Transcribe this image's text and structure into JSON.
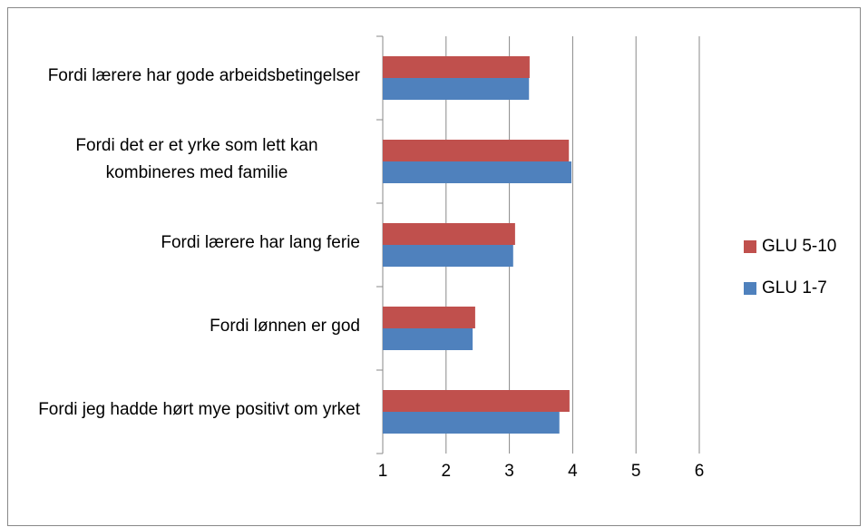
{
  "chart_data": {
    "type": "hbar",
    "categories": [
      "Fordi lærere har gode arbeidsbetingelser",
      "Fordi det er et yrke som lett kan kombineres med familie",
      "Fordi lærere har lang ferie",
      "Fordi lønnen er god",
      "Fordi jeg hadde hørt mye positivt om yrket"
    ],
    "series": [
      {
        "name": "GLU 5-10",
        "color": "#c0504d",
        "values": [
          3.32,
          3.94,
          3.09,
          2.46,
          3.95
        ]
      },
      {
        "name": "GLU 1-7",
        "color": "#4f81bd",
        "values": [
          3.31,
          3.98,
          3.06,
          2.42,
          3.79
        ]
      }
    ],
    "xlim": [
      1,
      6
    ],
    "xticks": [
      1,
      2,
      3,
      4,
      5,
      6
    ],
    "grid": true,
    "legend": "right"
  }
}
